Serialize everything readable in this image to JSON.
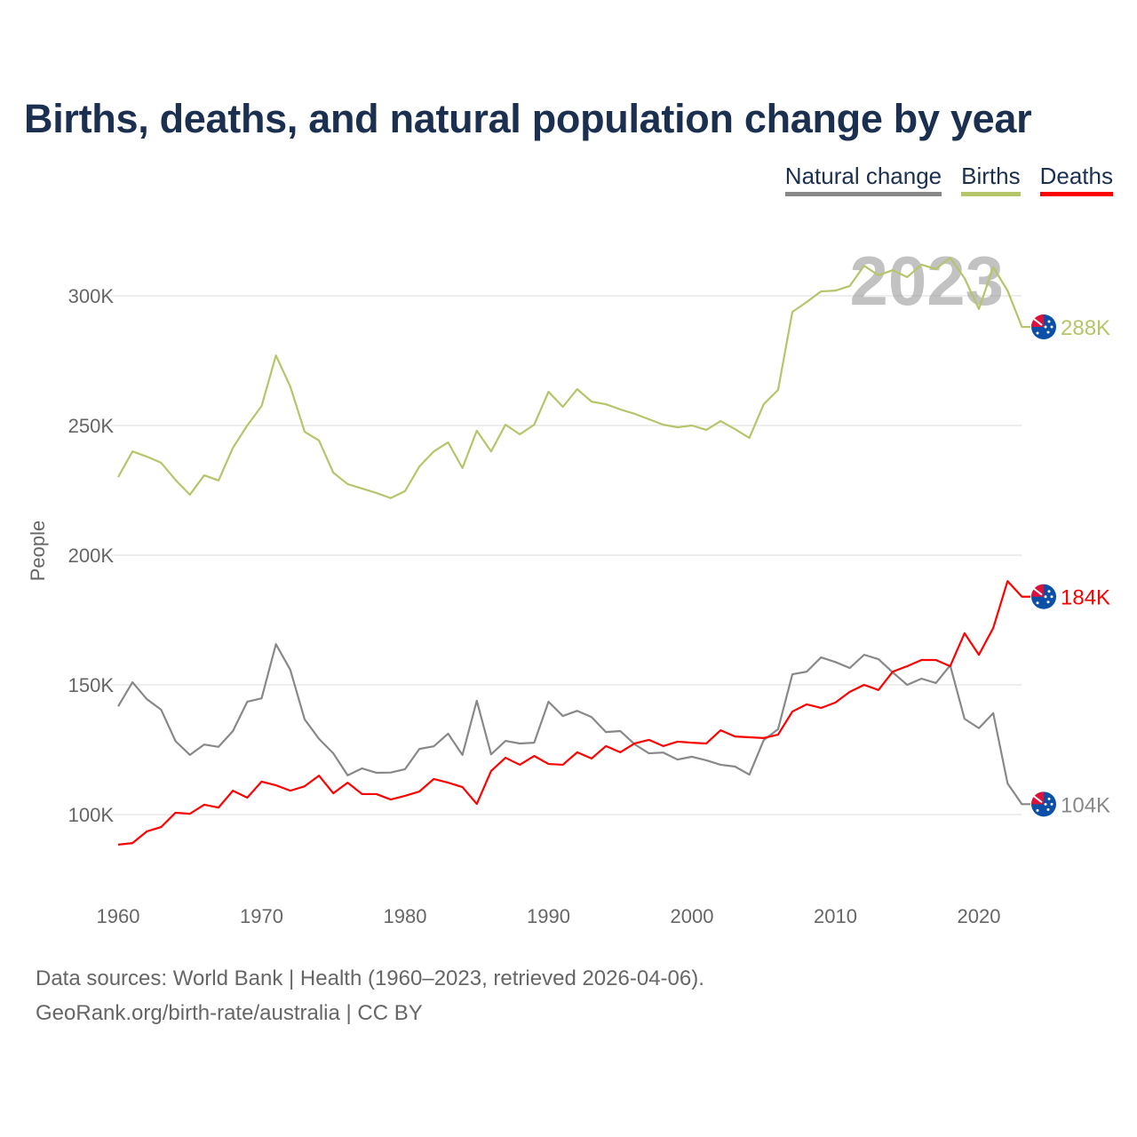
{
  "title": "Births, deaths, and natural population change by year",
  "legend": [
    {
      "label": "Natural change",
      "color": "#888888"
    },
    {
      "label": "Births",
      "color": "#b5c56a"
    },
    {
      "label": "Deaths",
      "color": "#ff0000"
    }
  ],
  "footer": {
    "line1": "Data sources: World Bank | Health (1960–2023, retrieved 2026-04-06).",
    "line2": "GeoRank.org/birth-rate/australia | CC BY"
  },
  "chart_data": {
    "type": "line",
    "title": "Births, deaths, and natural population change by year",
    "xlabel": "",
    "ylabel": "People",
    "year_watermark": "2023",
    "xlim": [
      1960,
      2023
    ],
    "ylim": [
      70000,
      330000
    ],
    "x_ticks": [
      1960,
      1970,
      1980,
      1990,
      2000,
      2010,
      2020
    ],
    "y_ticks": [
      {
        "value": 100000,
        "label": "100K"
      },
      {
        "value": 150000,
        "label": "150K"
      },
      {
        "value": 200000,
        "label": "200K"
      },
      {
        "value": 250000,
        "label": "250K"
      },
      {
        "value": 300000,
        "label": "300K"
      }
    ],
    "grid": true,
    "legend_position": "top-right",
    "x": [
      1960,
      1961,
      1962,
      1963,
      1964,
      1965,
      1966,
      1967,
      1968,
      1969,
      1970,
      1971,
      1972,
      1973,
      1974,
      1975,
      1976,
      1977,
      1978,
      1979,
      1980,
      1981,
      1982,
      1983,
      1984,
      1985,
      1986,
      1987,
      1988,
      1989,
      1990,
      1991,
      1992,
      1993,
      1994,
      1995,
      1996,
      1997,
      1998,
      1999,
      2000,
      2001,
      2002,
      2003,
      2004,
      2005,
      2006,
      2007,
      2008,
      2009,
      2010,
      2011,
      2012,
      2013,
      2014,
      2015,
      2016,
      2017,
      2018,
      2019,
      2020,
      2021,
      2022,
      2023
    ],
    "series": [
      {
        "name": "Natural change",
        "color": "#888888",
        "end_label": "104K",
        "values_k": [
          141.7,
          151,
          144.5,
          140.4,
          128.3,
          123,
          127,
          126.1,
          132.2,
          143.5,
          144.8,
          165.7,
          155.8,
          136.7,
          129.2,
          123.6,
          115.1,
          117.8,
          116.1,
          116.2,
          117.5,
          125.3,
          126.3,
          131.2,
          123,
          143.9,
          123.2,
          128.4,
          127.4,
          127.7,
          143.5,
          138,
          140,
          137.6,
          131.8,
          132.2,
          127.1,
          123.6,
          123.9,
          121.2,
          122.3,
          120.9,
          119.2,
          118.5,
          115.4,
          128.7,
          132.9,
          154.1,
          155.1,
          160.6,
          158.8,
          156.5,
          161.6,
          159.9,
          154.8,
          150,
          152.4,
          150.7,
          157.5,
          136.9,
          133.3,
          139.1,
          112,
          104
        ]
      },
      {
        "name": "Births",
        "color": "#b5c56a",
        "end_label": "288K",
        "values_k": [
          230.1,
          240,
          238,
          235.6,
          229,
          223.3,
          230.8,
          228.8,
          241.4,
          250,
          257.5,
          277,
          265,
          247.6,
          244.2,
          231.8,
          227.4,
          225.7,
          224,
          222,
          224.7,
          234.2,
          240,
          243.5,
          233.6,
          248,
          240,
          250.3,
          246.6,
          250.3,
          263,
          257.2,
          264,
          259.2,
          258.2,
          256.2,
          254.5,
          252.4,
          250.3,
          249.3,
          250,
          248.3,
          251.7,
          248.6,
          245.2,
          258.2,
          263.7,
          293.8,
          297.6,
          301.7,
          302,
          303.8,
          311.6,
          307.9,
          309.9,
          307.2,
          312,
          310.3,
          314.7,
          306.8,
          294.9,
          311,
          302,
          288
        ]
      },
      {
        "name": "Deaths",
        "color": "#ff0000",
        "end_label": "184K",
        "values_k": [
          88.4,
          89,
          93.5,
          95.2,
          100.7,
          100.3,
          103.8,
          102.7,
          109.2,
          106.5,
          112.7,
          111.3,
          109.2,
          110.9,
          115,
          108.2,
          112.3,
          107.9,
          107.9,
          105.8,
          107.2,
          108.9,
          113.7,
          112.3,
          110.6,
          104.1,
          116.8,
          121.9,
          119.2,
          122.6,
          119.5,
          119.2,
          124,
          121.6,
          126.4,
          124,
          127.4,
          128.8,
          126.4,
          128.1,
          127.7,
          127.4,
          132.5,
          130.1,
          129.8,
          129.5,
          130.8,
          139.7,
          142.5,
          141.1,
          143.2,
          147.3,
          150,
          148,
          155.1,
          157.2,
          159.6,
          159.6,
          157.2,
          169.9,
          161.6,
          171.9,
          190,
          184
        ]
      }
    ]
  }
}
